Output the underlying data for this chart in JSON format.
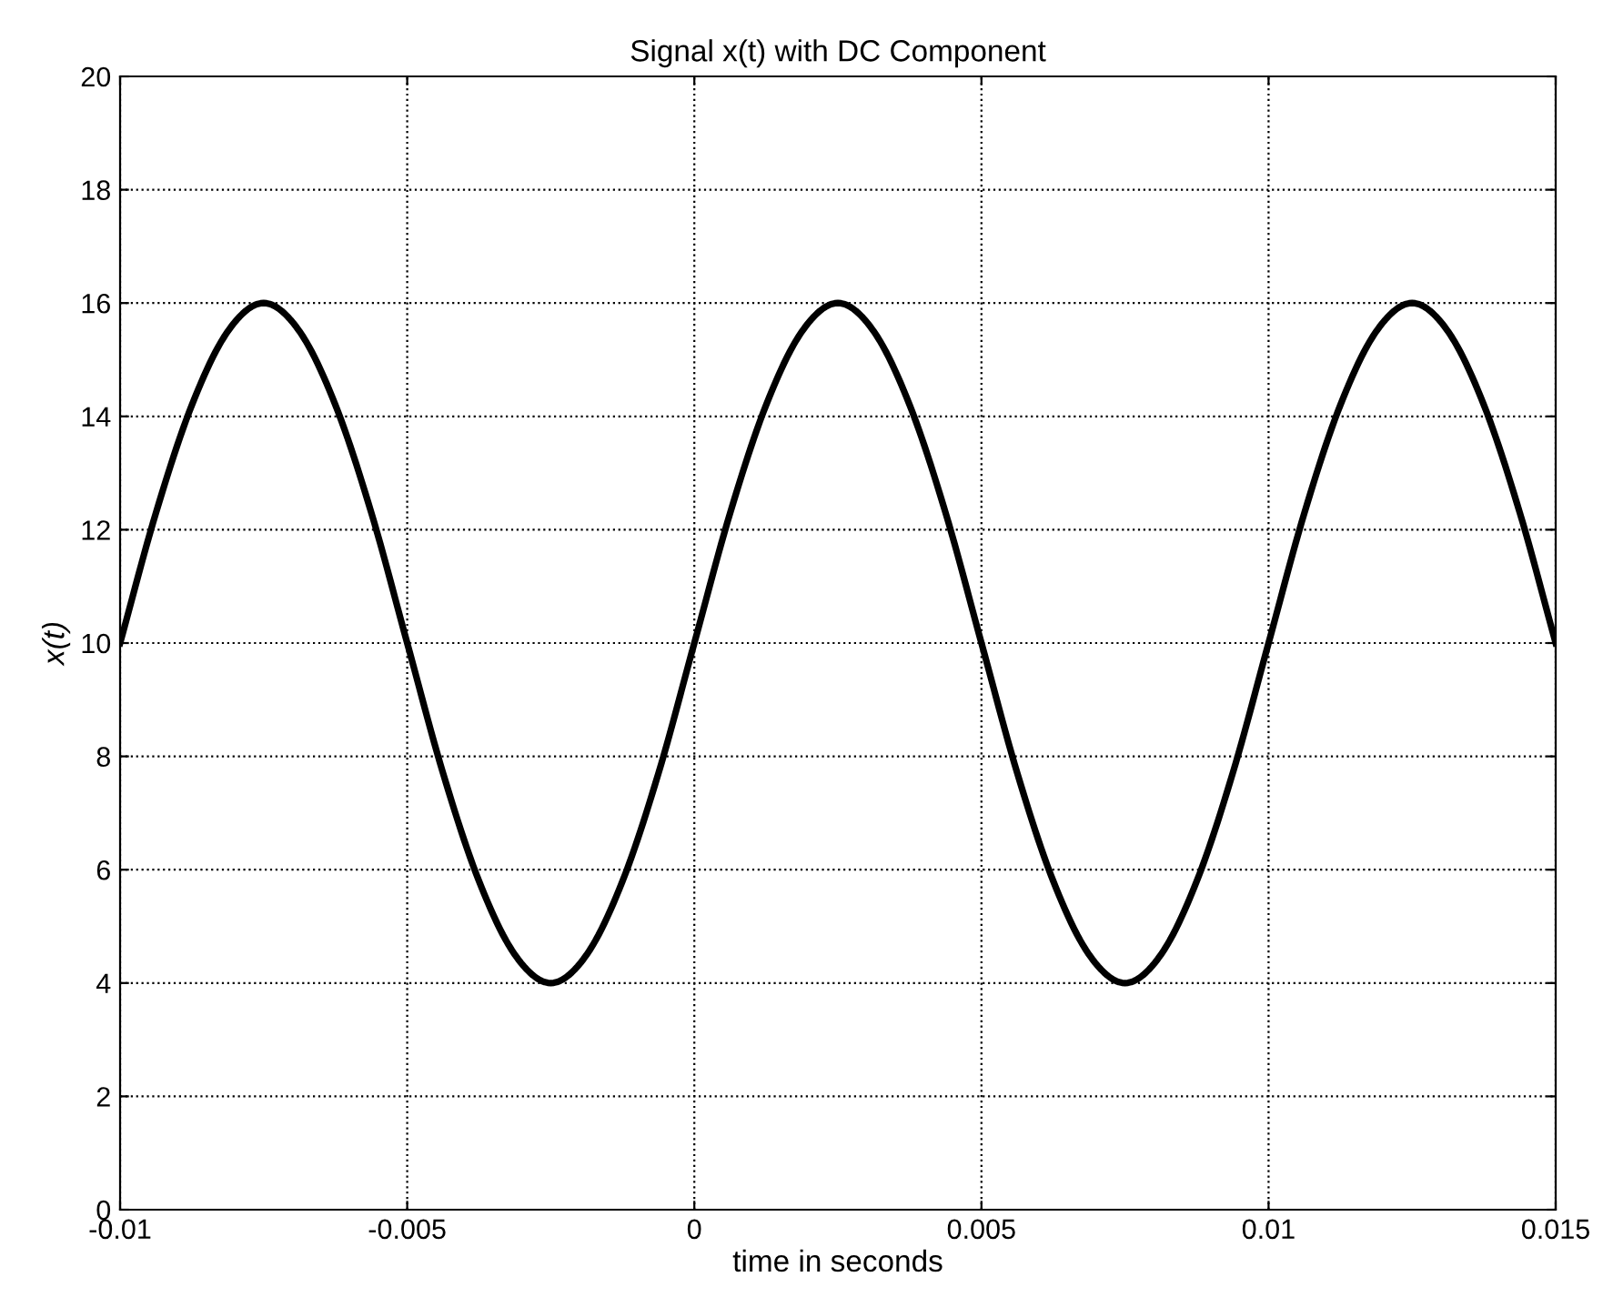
{
  "chart_data": {
    "type": "line",
    "title": "Signal x(t) with DC Component",
    "xlabel": "time in seconds",
    "ylabel": "x(t)",
    "xlim": [
      -0.01,
      0.015
    ],
    "xticks": [
      -0.01,
      -0.005,
      0,
      0.005,
      0.01,
      0.015
    ],
    "ylim": [
      0,
      20
    ],
    "yticks": [
      0,
      2,
      4,
      6,
      8,
      10,
      12,
      14,
      16,
      18,
      20
    ],
    "grid": true,
    "marker": "none",
    "line_style": "solid",
    "series": [
      {
        "color": "#000000",
        "x": [
          -0.01,
          -0.009375,
          -0.00875,
          -0.008125,
          -0.0075,
          -0.006875,
          -0.00625,
          -0.005625,
          -0.005,
          -0.004375,
          -0.00375,
          -0.003125,
          -0.0025,
          -0.001875,
          -0.00125,
          -0.000625,
          0,
          0.000625,
          0.00125,
          0.001875,
          0.0025,
          0.003125,
          0.00375,
          0.004375,
          0.005,
          0.005625,
          0.00625,
          0.006875,
          0.0075,
          0.008125,
          0.00875,
          0.009375,
          0.01,
          0.010625,
          0.01125,
          0.011875,
          0.0125,
          0.013125,
          0.01375,
          0.014375,
          0.015
        ],
        "values": [
          10,
          12.3,
          14.2,
          15.5,
          16,
          15.5,
          14.2,
          12.3,
          10,
          7.7,
          5.8,
          4.5,
          4,
          4.5,
          5.8,
          7.7,
          10,
          12.3,
          14.2,
          15.5,
          16,
          15.5,
          14.2,
          12.3,
          10,
          7.7,
          5.8,
          4.5,
          4,
          4.5,
          5.8,
          7.7,
          10,
          12.3,
          14.2,
          15.5,
          16,
          15.5,
          14.2,
          12.3,
          10
        ]
      }
    ]
  }
}
